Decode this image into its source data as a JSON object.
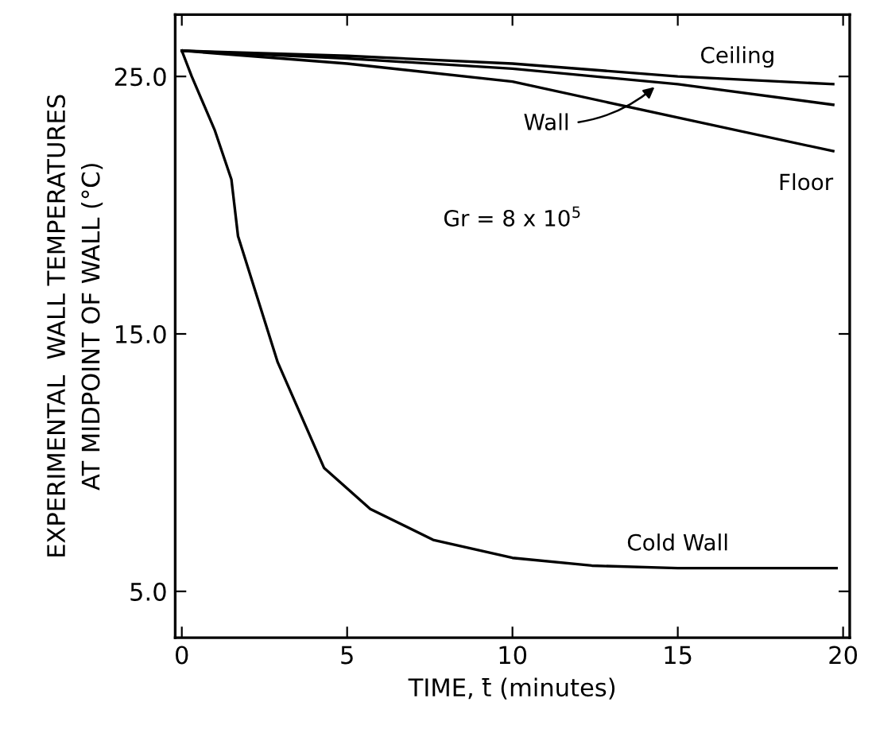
{
  "chart_data": {
    "type": "line",
    "xlabel": "TIME, t̄ (minutes)",
    "ylabel": "EXPERIMENTAL  WALL TEMPERATURES\nAT MIDPOINT OF WALL (°C)",
    "xlim": [
      -0.2,
      20.2
    ],
    "ylim": [
      3.2,
      27.4
    ],
    "xticks": [
      0,
      5,
      10,
      15,
      20
    ],
    "yticks": [
      {
        "value": 5,
        "label": "5.0"
      },
      {
        "value": 15,
        "label": "15.0"
      },
      {
        "value": 25,
        "label": "25.0"
      }
    ],
    "grid": false,
    "legend": false,
    "marker": "none",
    "line_style": "solid",
    "annotations": [
      "Gr = 8 x 10$^{5}$"
    ],
    "series": [
      {
        "name": "Ceiling",
        "color": "#000000",
        "x": [
          0,
          5,
          10,
          15,
          19.7
        ],
        "values": [
          26.0,
          25.8,
          25.5,
          25.0,
          24.7
        ]
      },
      {
        "name": "Wall",
        "color": "#000000",
        "x": [
          0,
          5,
          10,
          15,
          19.7
        ],
        "values": [
          26.0,
          25.7,
          25.3,
          24.7,
          23.9
        ]
      },
      {
        "name": "Floor",
        "color": "#000000",
        "x": [
          0,
          5,
          10,
          15,
          19.7
        ],
        "values": [
          26.0,
          25.5,
          24.8,
          23.4,
          22.1
        ]
      },
      {
        "name": "Cold Wall",
        "color": "#000000",
        "x": [
          0,
          0.3,
          1.0,
          1.5,
          1.7,
          2.9,
          4.3,
          5.7,
          7.6,
          10.0,
          12.4,
          15.0,
          19.8
        ],
        "values": [
          26.0,
          25.0,
          22.9,
          21.0,
          18.8,
          13.9,
          9.8,
          8.2,
          7.0,
          6.3,
          6.0,
          5.9,
          5.9
        ]
      }
    ]
  }
}
